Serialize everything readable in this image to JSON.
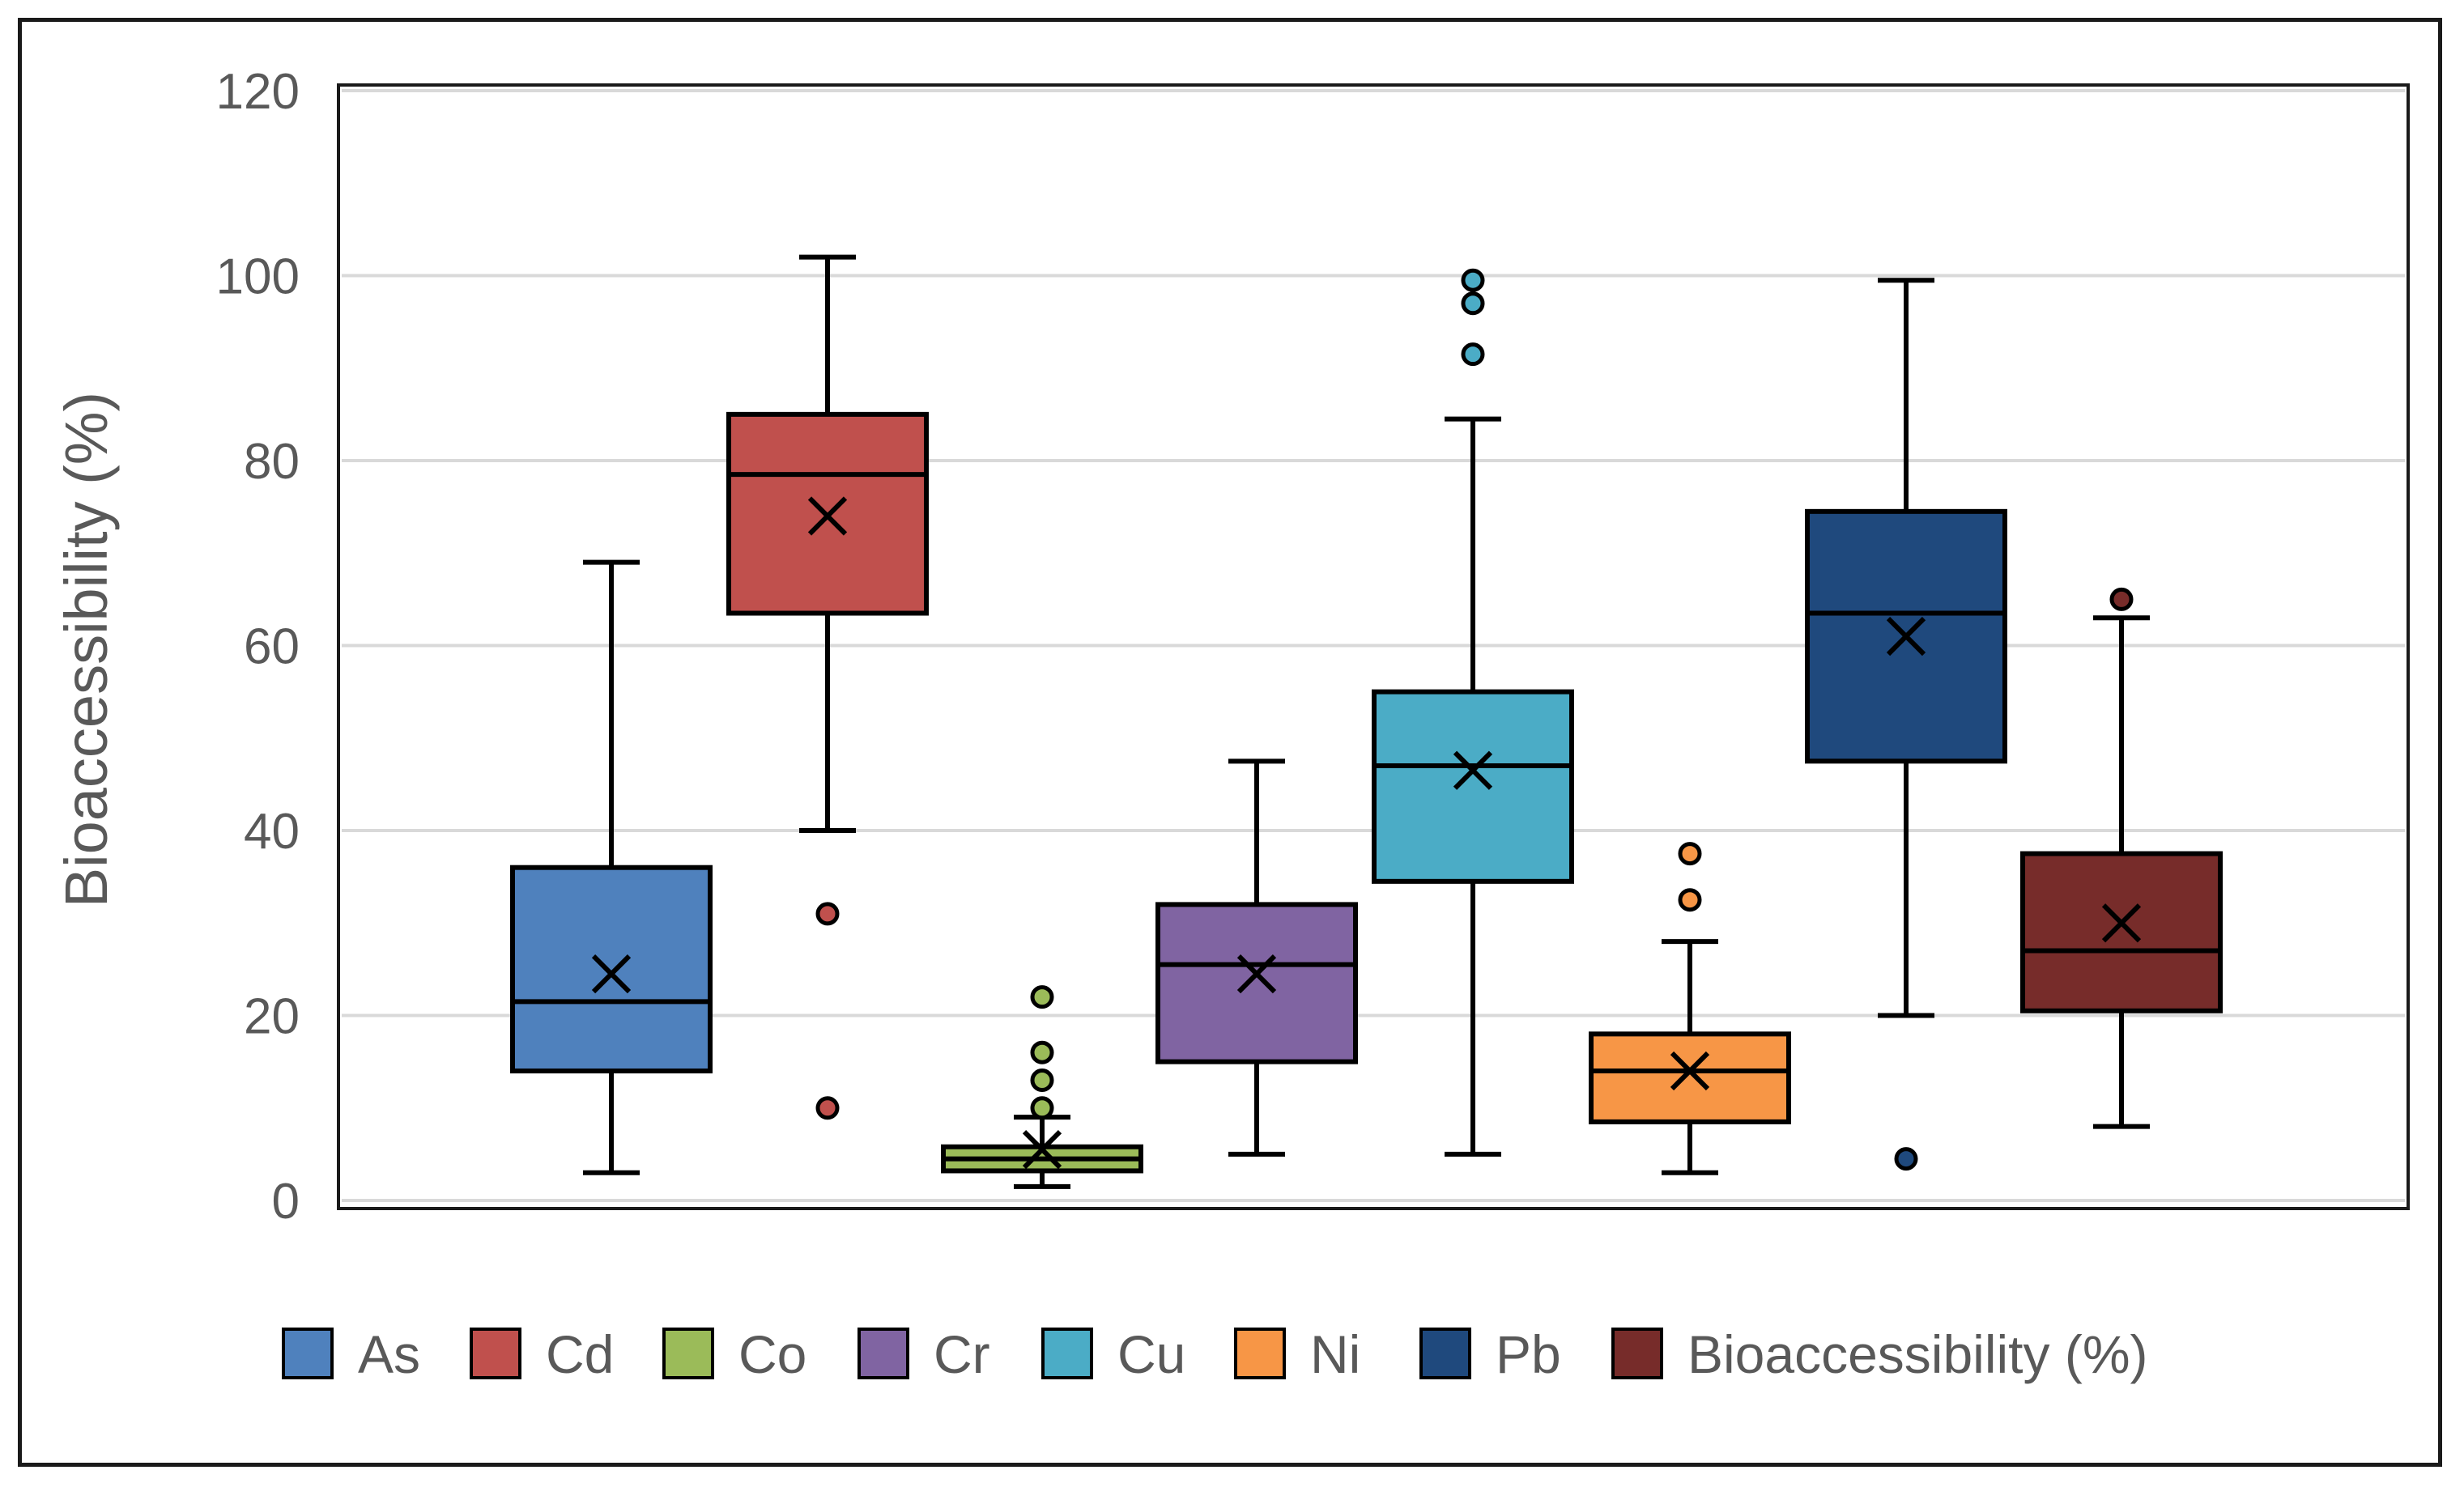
{
  "chart_data": {
    "type": "box",
    "ylabel": "Bioaccessibility (%)",
    "ylim": [
      0,
      120
    ],
    "yticks": [
      0,
      20,
      40,
      60,
      80,
      100,
      120
    ],
    "grid": true,
    "legend_position": "bottom",
    "categories": [
      "As",
      "Cd",
      "Co",
      "Cr",
      "Cu",
      "Ni",
      "Pb",
      "Bioaccessibility (%)"
    ],
    "series": [
      {
        "name": "As",
        "color": "#4f81bd",
        "whisker_low": 3,
        "q1": 14,
        "median": 21.5,
        "q3": 36,
        "whisker_high": 69,
        "mean": 24.5,
        "outliers": []
      },
      {
        "name": "Cd",
        "color": "#c0504d",
        "whisker_low": 40,
        "q1": 63.5,
        "median": 78.5,
        "q3": 85,
        "whisker_high": 102,
        "mean": 74,
        "outliers": [
          31,
          10
        ]
      },
      {
        "name": "Co",
        "color": "#9bbb59",
        "whisker_low": 1.5,
        "q1": 3.2,
        "median": 4.5,
        "q3": 5.8,
        "whisker_high": 9,
        "mean": 5.5,
        "outliers": [
          22,
          16,
          13,
          10
        ]
      },
      {
        "name": "Cr",
        "color": "#8064a2",
        "whisker_low": 5,
        "q1": 15,
        "median": 25.5,
        "q3": 32,
        "whisker_high": 47.5,
        "mean": 24.5,
        "outliers": []
      },
      {
        "name": "Cu",
        "color": "#4bacc6",
        "whisker_low": 5,
        "q1": 34.5,
        "median": 47,
        "q3": 55,
        "whisker_high": 84.5,
        "mean": 46.5,
        "outliers": [
          99.5,
          97,
          91.5
        ]
      },
      {
        "name": "Ni",
        "color": "#f79646",
        "whisker_low": 3,
        "q1": 8.5,
        "median": 14,
        "q3": 18,
        "whisker_high": 28,
        "mean": 14,
        "outliers": [
          37.5,
          32.5
        ]
      },
      {
        "name": "Pb",
        "color": "#1f497d",
        "whisker_low": 20,
        "q1": 47.5,
        "median": 63.5,
        "q3": 74.5,
        "whisker_high": 99.5,
        "mean": 61,
        "outliers": [
          4.5
        ]
      },
      {
        "name": "Bioaccessibility (%)",
        "color": "#772c2a",
        "whisker_low": 8,
        "q1": 20.5,
        "median": 27,
        "q3": 37.5,
        "whisker_high": 63,
        "mean": 30,
        "outliers": [
          65
        ]
      }
    ]
  }
}
